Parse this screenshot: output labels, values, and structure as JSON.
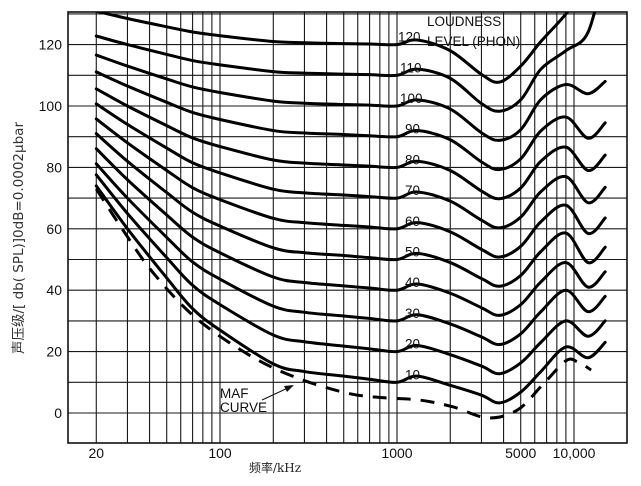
{
  "chart_data": {
    "type": "line",
    "title": "",
    "xlabel": "频率/kHz",
    "ylabel": "声压级/[ db( SPL)]0dB=0.0002μbar",
    "xscale": "log",
    "xlim": [
      13.8,
      20000
    ],
    "ylim": [
      -10,
      130
    ],
    "grid": true,
    "x_ticks": [
      {
        "value": 20,
        "label": "20"
      },
      {
        "value": 100,
        "label": "100"
      },
      {
        "value": 1000,
        "label": "1000"
      },
      {
        "value": 5000,
        "label": "5000"
      },
      {
        "value": 10000,
        "label": "10,000"
      }
    ],
    "y_ticks": [
      {
        "value": 120,
        "label": "120"
      },
      {
        "value": 100,
        "label": "100"
      },
      {
        "value": 80,
        "label": "80"
      },
      {
        "value": 60,
        "label": "60"
      },
      {
        "value": 40,
        "label": "40"
      },
      {
        "value": 20,
        "label": "20"
      },
      {
        "value": 0,
        "label": "0"
      }
    ],
    "x_grid": [
      20,
      30,
      40,
      50,
      60,
      70,
      80,
      90,
      100,
      200,
      300,
      400,
      500,
      600,
      700,
      800,
      900,
      1000,
      2000,
      3000,
      4000,
      5000,
      6000,
      7000,
      8000,
      9000,
      10000
    ],
    "y_grid_step": 10,
    "legend_title": [
      "LOUDNESS",
      "LEVEL (PHON)"
    ],
    "x": [
      20,
      30,
      50,
      70,
      100,
      200,
      300,
      500,
      700,
      1000,
      1300,
      2000,
      3000,
      3800,
      5000,
      6500,
      9000,
      12000,
      15000
    ],
    "series": [
      {
        "name": "10",
        "label": "10",
        "values": [
          74,
          60,
          44,
          34,
          27,
          16,
          13.5,
          12,
          11,
          10,
          12,
          9,
          5.8,
          3.3,
          6.8,
          13.5,
          21.5,
          18,
          23
        ]
      },
      {
        "name": "20",
        "label": "20",
        "values": [
          77.6,
          65,
          50.6,
          41.6,
          35.3,
          25.4,
          23.2,
          21.8,
          20.9,
          20,
          22,
          19,
          15.3,
          12.8,
          16.3,
          23,
          30,
          25,
          30
        ]
      },
      {
        "name": "30",
        "label": "30",
        "values": [
          81.2,
          70,
          57.2,
          49.2,
          43.6,
          34.8,
          32.8,
          31.6,
          30.8,
          30,
          32,
          29,
          24.8,
          22.3,
          25.8,
          33,
          40,
          33,
          38
        ]
      },
      {
        "name": "40",
        "label": "40",
        "values": [
          86.1,
          76,
          64.5,
          57.3,
          52.2,
          44.3,
          42.5,
          41.4,
          40.7,
          40,
          42,
          39,
          34.3,
          31.8,
          35.3,
          42.7,
          49,
          41,
          46
        ]
      },
      {
        "name": "50",
        "label": "50",
        "values": [
          91,
          82,
          71.8,
          65.4,
          60.9,
          53.8,
          52.2,
          51.3,
          50.6,
          50,
          52,
          49,
          43.8,
          41.3,
          44.8,
          52.6,
          58.6,
          49,
          54
        ]
      },
      {
        "name": "60",
        "label": "60",
        "values": [
          95.8,
          88,
          79,
          73.4,
          69.5,
          63.4,
          62,
          61.1,
          60.6,
          60,
          62,
          59,
          53.3,
          50.8,
          54.3,
          62.3,
          67.7,
          58.5,
          63.5
        ]
      },
      {
        "name": "70",
        "label": "70",
        "values": [
          100.7,
          94,
          86.3,
          81.5,
          78.2,
          72.9,
          71.7,
          71,
          70.5,
          70,
          72,
          69,
          62.8,
          60.3,
          63.8,
          72.1,
          77,
          68.5,
          73.5
        ]
      },
      {
        "name": "80",
        "label": "80",
        "values": [
          105.6,
          100,
          93.6,
          89.6,
          86.8,
          82.4,
          81.4,
          80.8,
          80.4,
          80,
          82,
          79,
          72.3,
          69.8,
          73.3,
          82,
          86.6,
          79,
          84
        ]
      },
      {
        "name": "90",
        "label": "90",
        "values": [
          111.1,
          106.5,
          101.2,
          97.9,
          95.6,
          92,
          91.2,
          90.7,
          90.3,
          90,
          92,
          89,
          81.8,
          79.3,
          82.8,
          91.9,
          96.4,
          89.5,
          94.5
        ]
      },
      {
        "name": "100",
        "label": "100",
        "values": [
          116.6,
          113,
          108.8,
          106.2,
          104.4,
          101.6,
          100.9,
          100.5,
          100.3,
          100,
          102,
          99,
          91.3,
          88.8,
          92.3,
          102.1,
          107,
          104,
          108
        ]
      },
      {
        "name": "110",
        "label": "110",
        "values": [
          122.8,
          120,
          116.8,
          114.8,
          113.4,
          111.2,
          110.7,
          110.4,
          110.2,
          110,
          112,
          109,
          100.8,
          98.3,
          102,
          112,
          118,
          124,
          145
        ]
      },
      {
        "name": "120",
        "label": "120",
        "values": [
          130.9,
          128.5,
          125.8,
          124.1,
          122.9,
          121,
          120.6,
          120.3,
          120.2,
          120,
          121.5,
          118,
          110.3,
          107.8,
          113,
          121,
          130,
          140,
          150
        ]
      }
    ],
    "maf_curve": {
      "label": [
        "MAF",
        "CURVE"
      ],
      "x": [
        20,
        28,
        42,
        73,
        145,
        265,
        520,
        830,
        1350,
        2070,
        3260,
        4800,
        6600,
        9000,
        10500,
        12500
      ],
      "values": [
        73,
        60,
        45.6,
        31,
        19,
        11.7,
        6.5,
        5,
        4.2,
        2,
        -1.6,
        1,
        9,
        17,
        16.6,
        14
      ]
    },
    "colors": {
      "line": "#000000",
      "grid": "#1a1a1a",
      "background": "#ffffff"
    }
  }
}
